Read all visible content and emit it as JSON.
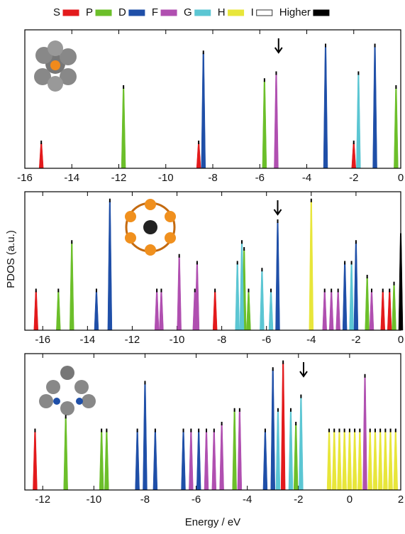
{
  "legend": {
    "names": [
      "S",
      "P",
      "D",
      "F",
      "G",
      "H",
      "I",
      "Higher"
    ],
    "colors": [
      "#e31a1c",
      "#6cbf2a",
      "#1f4fa8",
      "#b04fb0",
      "#5bc6d3",
      "#e8e63a",
      "#ffffff",
      "#000000"
    ]
  },
  "y_label": "PDOS (a.u.)",
  "x_label": "Energy / eV",
  "chart_data": [
    {
      "type": "spike",
      "xlim": [
        -16,
        0
      ],
      "xticks": [
        -16,
        -14,
        -12,
        -10,
        -8,
        -6,
        -4,
        -2,
        0
      ],
      "ylim": [
        0,
        1
      ],
      "arrow_x": -5.2,
      "series": [
        {
          "x": [
            -15.3,
            -8.6,
            -2.0
          ],
          "values": [
            0.2,
            0.2,
            0.2
          ]
        },
        {
          "x": [
            -11.8,
            -5.8,
            -0.2
          ],
          "values": [
            0.6,
            0.65,
            0.6
          ]
        },
        {
          "x": [
            -8.4,
            -3.2,
            -1.1
          ],
          "values": [
            0.85,
            0.9,
            0.9
          ]
        },
        {
          "x": [
            -5.3
          ],
          "values": [
            0.7
          ]
        },
        {
          "x": [
            -1.8
          ],
          "values": [
            0.7
          ]
        },
        {
          "x": [],
          "values": []
        },
        {
          "x": [],
          "values": []
        },
        {
          "x": [],
          "values": []
        }
      ]
    },
    {
      "type": "spike",
      "xlim": [
        -16.8,
        0
      ],
      "xticks": [
        -16,
        -14,
        -12,
        -10,
        -8,
        -6,
        -4,
        -2,
        0
      ],
      "ylim": [
        0,
        1
      ],
      "arrow_x": -5.5,
      "series": [
        {
          "x": [
            -16.3,
            -8.3,
            -0.8,
            -0.5
          ],
          "values": [
            0.3,
            0.3,
            0.3,
            0.3
          ]
        },
        {
          "x": [
            -15.3,
            -14.7,
            -7.0,
            -6.8,
            -1.5,
            -0.3
          ],
          "values": [
            0.3,
            0.65,
            0.6,
            0.3,
            0.4,
            0.35
          ]
        },
        {
          "x": [
            -13.6,
            -13.0,
            -5.5,
            -2.5,
            -2.0
          ],
          "values": [
            0.3,
            0.95,
            0.8,
            0.5,
            0.65
          ]
        },
        {
          "x": [
            -10.9,
            -10.7,
            -9.9,
            -9.2,
            -9.1,
            -3.4,
            -3.1,
            -2.8,
            -1.3
          ],
          "values": [
            0.3,
            0.3,
            0.55,
            0.3,
            0.5,
            0.3,
            0.3,
            0.3,
            0.3
          ]
        },
        {
          "x": [
            -7.3,
            -7.1,
            -6.2,
            -5.8,
            -2.2
          ],
          "values": [
            0.5,
            0.65,
            0.45,
            0.3,
            0.5
          ]
        },
        {
          "x": [
            -4.0
          ],
          "values": [
            0.95
          ]
        },
        {
          "x": [],
          "values": []
        },
        {
          "x": [
            0
          ],
          "values": [
            0.7
          ]
        }
      ]
    },
    {
      "type": "spike",
      "xlim": [
        -12.7,
        2
      ],
      "xticks": [
        -12,
        -10,
        -8,
        -6,
        -4,
        -2,
        0,
        2
      ],
      "ylim": [
        0,
        1
      ],
      "arrow_x": -1.8,
      "series": [
        {
          "x": [
            -12.3,
            -2.6
          ],
          "values": [
            0.45,
            0.95
          ]
        },
        {
          "x": [
            -11.1,
            -9.7,
            -9.5,
            -4.5,
            -2.1
          ],
          "values": [
            0.55,
            0.45,
            0.45,
            0.6,
            0.5
          ]
        },
        {
          "x": [
            -8.3,
            -8.0,
            -7.6,
            -6.5,
            -5.9,
            -3.3,
            -3.0
          ],
          "values": [
            0.45,
            0.8,
            0.45,
            0.45,
            0.45,
            0.45,
            0.9
          ]
        },
        {
          "x": [
            -6.2,
            -5.6,
            -5.3,
            -5.0,
            -4.3,
            0.6
          ],
          "values": [
            0.45,
            0.45,
            0.45,
            0.5,
            0.6,
            0.85
          ]
        },
        {
          "x": [
            -2.8,
            -2.3,
            -1.9
          ],
          "values": [
            0.6,
            0.6,
            0.7
          ]
        },
        {
          "x": [
            -0.8,
            -0.6,
            -0.4,
            -0.2,
            0.0,
            0.2,
            0.4,
            0.8,
            1.0,
            1.2,
            1.4,
            1.6,
            1.8
          ],
          "values": [
            0.45,
            0.45,
            0.45,
            0.45,
            0.45,
            0.45,
            0.45,
            0.45,
            0.45,
            0.45,
            0.45,
            0.45,
            0.45
          ]
        },
        {
          "x": [],
          "values": []
        },
        {
          "x": [],
          "values": []
        }
      ]
    }
  ]
}
